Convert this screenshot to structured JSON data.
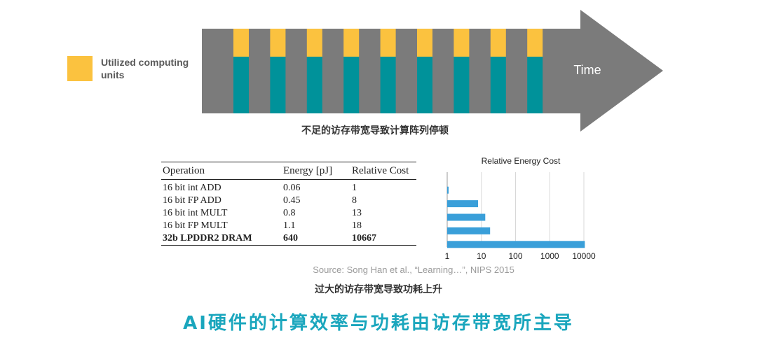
{
  "colors": {
    "utilized": "#fbc23f",
    "compute_unit": "#00929a",
    "arrow": "#7b7b7b",
    "bar": "#3a9fd9",
    "headline": "#1aa6bd"
  },
  "legend": {
    "label": "Utilized computing units"
  },
  "timeline": {
    "time_label": "Time",
    "unit_count": 9
  },
  "captions": {
    "stall": "不足的访存带宽导致计算阵列停顿",
    "power": "过大的访存带宽导致功耗上升",
    "source": "Source: Song Han et al., “Learning…”, NIPS 2015",
    "headline": "AI硬件的计算效率与功耗由访存带宽所主导"
  },
  "table": {
    "headers": [
      "Operation",
      "Energy [pJ]",
      "Relative Cost"
    ],
    "rows": [
      [
        "16 bit int ADD",
        "0.06",
        "1"
      ],
      [
        "16 bit FP ADD",
        "0.45",
        "8"
      ],
      [
        "16 bit int MULT",
        "0.8",
        "13"
      ],
      [
        "16 bit FP MULT",
        "1.1",
        "18"
      ],
      [
        "32b LPDDR2 DRAM",
        "640",
        "10667"
      ]
    ]
  },
  "chart_data": {
    "type": "bar",
    "orientation": "horizontal",
    "title": "Relative Energy Cost",
    "x_scale": "log",
    "xlim": [
      1,
      10000
    ],
    "x_ticks": [
      "1",
      "10",
      "100",
      "1000",
      "10000"
    ],
    "categories": [
      "16 bit int ADD",
      "16 bit FP ADD",
      "16 bit int MULT",
      "16 bit FP MULT",
      "32b LPDDR2 DRAM"
    ],
    "values": [
      1,
      8,
      13,
      18,
      10667
    ],
    "grid": true
  }
}
